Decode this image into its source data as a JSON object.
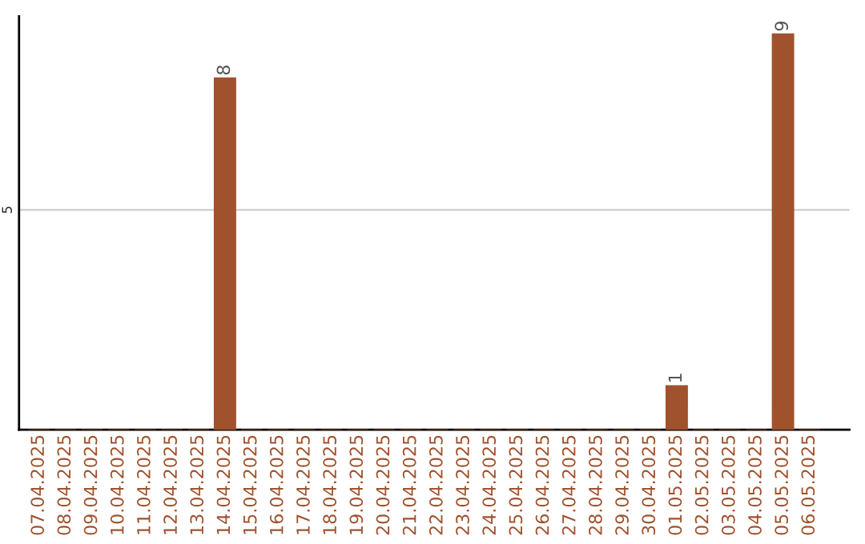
{
  "chart_data": {
    "type": "bar",
    "categories": [
      "07.04.2025",
      "08.04.2025",
      "09.04.2025",
      "10.04.2025",
      "11.04.2025",
      "12.04.2025",
      "13.04.2025",
      "14.04.2025",
      "15.04.2025",
      "16.04.2025",
      "17.04.2025",
      "18.04.2025",
      "19.04.2025",
      "20.04.2025",
      "21.04.2025",
      "22.04.2025",
      "23.04.2025",
      "24.04.2025",
      "25.04.2025",
      "26.04.2025",
      "27.04.2025",
      "28.04.2025",
      "29.04.2025",
      "30.04.2025",
      "01.05.2025",
      "02.05.2025",
      "03.05.2025",
      "04.05.2025",
      "05.05.2025",
      "06.05.2025"
    ],
    "values": [
      0,
      0,
      0,
      0,
      0,
      0,
      0,
      8,
      0,
      0,
      0,
      0,
      0,
      0,
      0,
      0,
      0,
      0,
      0,
      0,
      0,
      0,
      0,
      0,
      1,
      0,
      0,
      0,
      9,
      0
    ],
    "value_labels": [
      null,
      null,
      null,
      null,
      null,
      null,
      null,
      "8",
      null,
      null,
      null,
      null,
      null,
      null,
      null,
      null,
      null,
      null,
      null,
      null,
      null,
      null,
      null,
      null,
      "1",
      null,
      null,
      null,
      "9",
      null
    ],
    "color": "#a0522d",
    "ylim": [
      0,
      9.4
    ],
    "yticks": [
      5
    ],
    "grid": "y",
    "legend": false
  }
}
